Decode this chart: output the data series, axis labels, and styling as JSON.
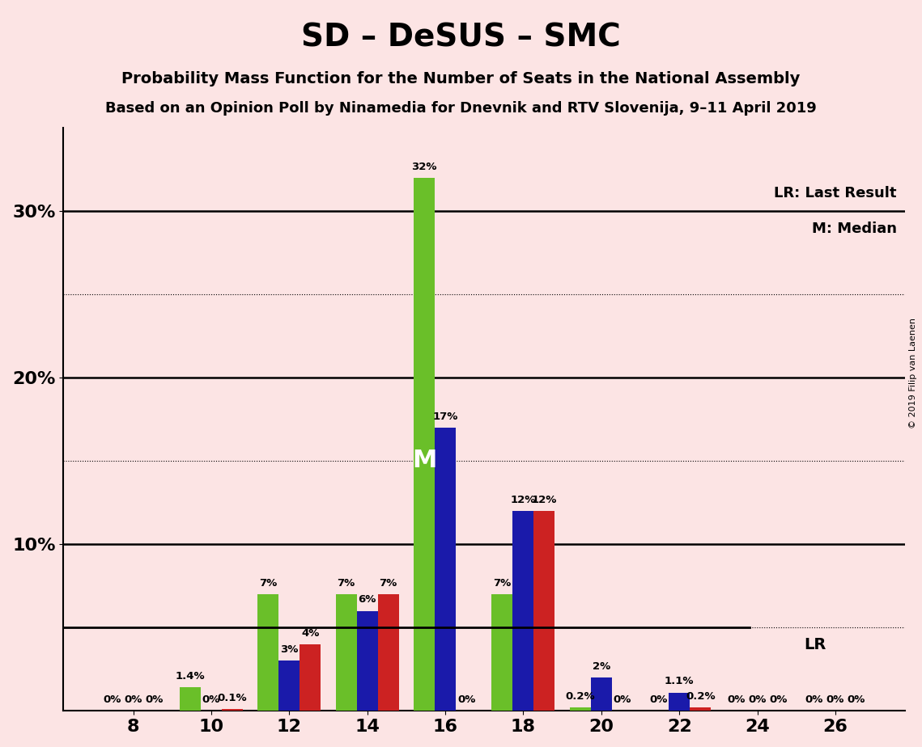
{
  "title": "SD – DeSUS – SMC",
  "subtitle1": "Probability Mass Function for the Number of Seats in the National Assembly",
  "subtitle2": "Based on an Opinion Poll by Ninamedia for Dnevnik and RTV Slovenija, 9–11 April 2019",
  "background_color": "#fce4e4",
  "seats": [
    8,
    10,
    12,
    14,
    16,
    18,
    20,
    22,
    24,
    26
  ],
  "green_values": [
    0.0,
    1.4,
    7.0,
    7.0,
    32.0,
    7.0,
    0.2,
    0.0,
    0.0,
    0.0
  ],
  "blue_values": [
    0.0,
    0.0,
    3.0,
    6.0,
    17.0,
    12.0,
    2.0,
    1.1,
    0.0,
    0.0
  ],
  "red_values": [
    0.0,
    0.1,
    4.0,
    7.0,
    0.0,
    12.0,
    0.0,
    0.2,
    0.0,
    0.0
  ],
  "green_color": "#6abf29",
  "blue_color": "#1a1aaa",
  "red_color": "#cc2222",
  "lr_level": 5.0,
  "median_seat": 16,
  "ylim_max": 35,
  "bar_width": 0.27,
  "label_fontsize": 9.5,
  "tick_fontsize": 16,
  "title_fontsize": 28,
  "subtitle1_fontsize": 14,
  "subtitle2_fontsize": 13,
  "copyright_text": "© 2019 Filip van Laenen"
}
